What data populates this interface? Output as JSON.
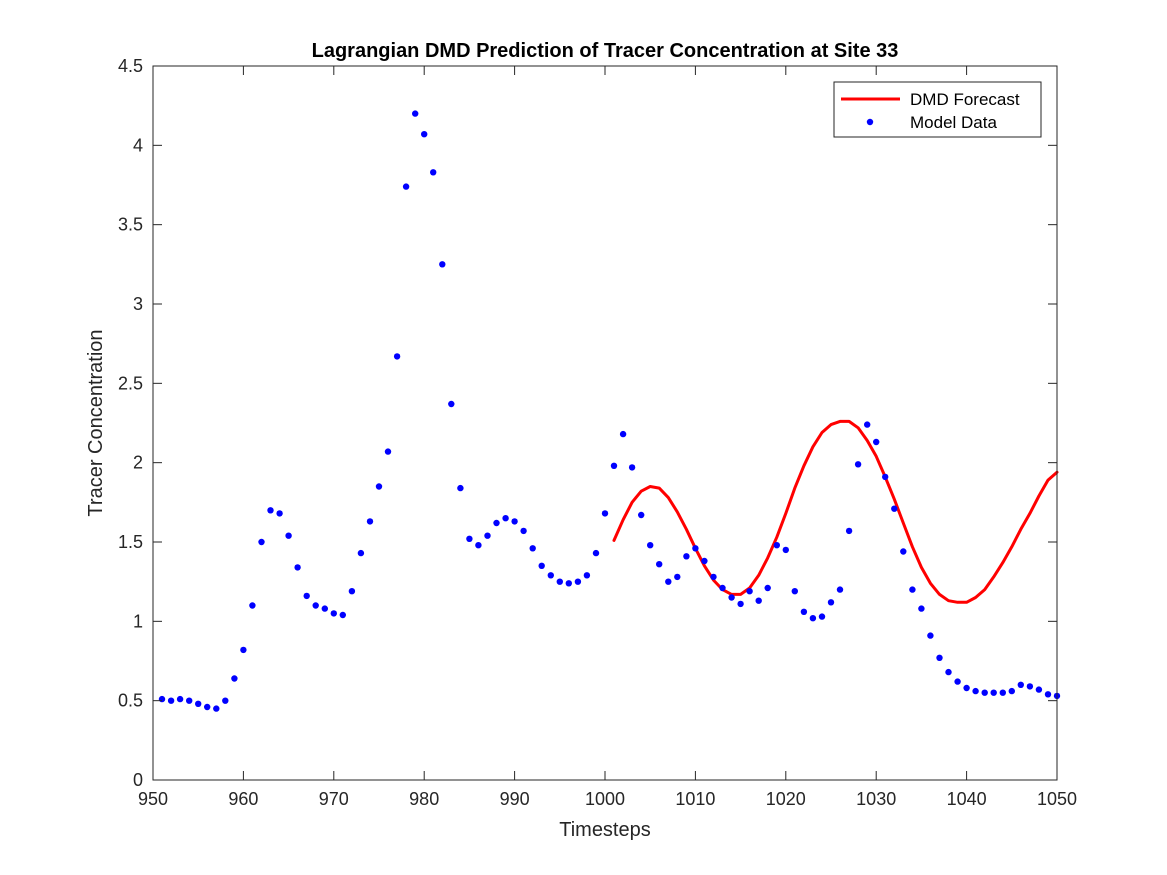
{
  "chart_data": {
    "type": "line",
    "title": "Lagrangian DMD Prediction of Tracer Concentration at Site 33",
    "xlabel": "Timesteps",
    "ylabel": "Tracer Concentration",
    "xlim": [
      950,
      1050
    ],
    "ylim": [
      0,
      4.5
    ],
    "x_ticks": [
      "950",
      "960",
      "970",
      "980",
      "990",
      "1000",
      "1010",
      "1020",
      "1030",
      "1040",
      "1050"
    ],
    "y_ticks": [
      "0",
      "0.5",
      "1",
      "1.5",
      "2",
      "2.5",
      "3",
      "3.5",
      "4",
      "4.5"
    ],
    "grid": false,
    "legend_position": "top-right",
    "series": [
      {
        "name": "DMD Forecast",
        "style": "line",
        "color": "#ff0000",
        "x": [
          1001,
          1002,
          1003,
          1004,
          1005,
          1006,
          1007,
          1008,
          1009,
          1010,
          1011,
          1012,
          1013,
          1014,
          1015,
          1016,
          1017,
          1018,
          1019,
          1020,
          1021,
          1022,
          1023,
          1024,
          1025,
          1026,
          1027,
          1028,
          1029,
          1030,
          1031,
          1032,
          1033,
          1034,
          1035,
          1036,
          1037,
          1038,
          1039,
          1040,
          1041,
          1042,
          1043,
          1044,
          1045,
          1046,
          1047,
          1048,
          1049,
          1050
        ],
        "y": [
          1.51,
          1.64,
          1.75,
          1.82,
          1.85,
          1.84,
          1.78,
          1.69,
          1.58,
          1.46,
          1.35,
          1.26,
          1.2,
          1.17,
          1.17,
          1.21,
          1.29,
          1.4,
          1.53,
          1.68,
          1.84,
          1.98,
          2.1,
          2.19,
          2.24,
          2.26,
          2.26,
          2.22,
          2.14,
          2.04,
          1.91,
          1.77,
          1.62,
          1.47,
          1.34,
          1.24,
          1.17,
          1.13,
          1.12,
          1.12,
          1.15,
          1.2,
          1.28,
          1.37,
          1.47,
          1.58,
          1.68,
          1.79,
          1.89,
          1.94
        ]
      },
      {
        "name": "Model Data",
        "style": "points",
        "color": "#0000ff",
        "x": [
          951,
          952,
          953,
          954,
          955,
          956,
          957,
          958,
          959,
          960,
          961,
          962,
          963,
          964,
          965,
          966,
          967,
          968,
          969,
          970,
          971,
          972,
          973,
          974,
          975,
          976,
          977,
          978,
          979,
          980,
          981,
          982,
          983,
          984,
          985,
          986,
          987,
          988,
          989,
          990,
          991,
          992,
          993,
          994,
          995,
          996,
          997,
          998,
          999,
          1000,
          1001,
          1002,
          1003,
          1004,
          1005,
          1006,
          1007,
          1008,
          1009,
          1010,
          1011,
          1012,
          1013,
          1014,
          1015,
          1016,
          1017,
          1018,
          1019,
          1020,
          1021,
          1022,
          1023,
          1024,
          1025,
          1026,
          1027,
          1028,
          1029,
          1030,
          1031,
          1032,
          1033,
          1034,
          1035,
          1036,
          1037,
          1038,
          1039,
          1040,
          1041,
          1042,
          1043,
          1044,
          1045,
          1046,
          1047,
          1048,
          1049,
          1050
        ],
        "y": [
          0.51,
          0.5,
          0.51,
          0.5,
          0.48,
          0.46,
          0.45,
          0.5,
          0.64,
          0.82,
          1.1,
          1.5,
          1.7,
          1.68,
          1.54,
          1.34,
          1.16,
          1.1,
          1.08,
          1.05,
          1.04,
          1.19,
          1.43,
          1.63,
          1.85,
          2.07,
          2.67,
          3.74,
          4.2,
          4.07,
          3.83,
          3.25,
          2.37,
          1.84,
          1.52,
          1.48,
          1.54,
          1.62,
          1.65,
          1.63,
          1.57,
          1.46,
          1.35,
          1.29,
          1.25,
          1.24,
          1.25,
          1.29,
          1.43,
          1.68,
          1.98,
          2.18,
          1.97,
          1.67,
          1.48,
          1.36,
          1.25,
          1.28,
          1.41,
          1.46,
          1.38,
          1.28,
          1.21,
          1.15,
          1.11,
          1.19,
          1.13,
          1.21,
          1.48,
          1.45,
          1.19,
          1.06,
          1.02,
          1.03,
          1.12,
          1.2,
          1.57,
          1.99,
          2.24,
          2.13,
          1.91,
          1.71,
          1.44,
          1.2,
          1.08,
          0.91,
          0.77,
          0.68,
          0.62,
          0.58,
          0.56,
          0.55,
          0.55,
          0.55,
          0.56,
          0.6,
          0.59,
          0.57,
          0.54,
          0.53
        ]
      }
    ]
  }
}
